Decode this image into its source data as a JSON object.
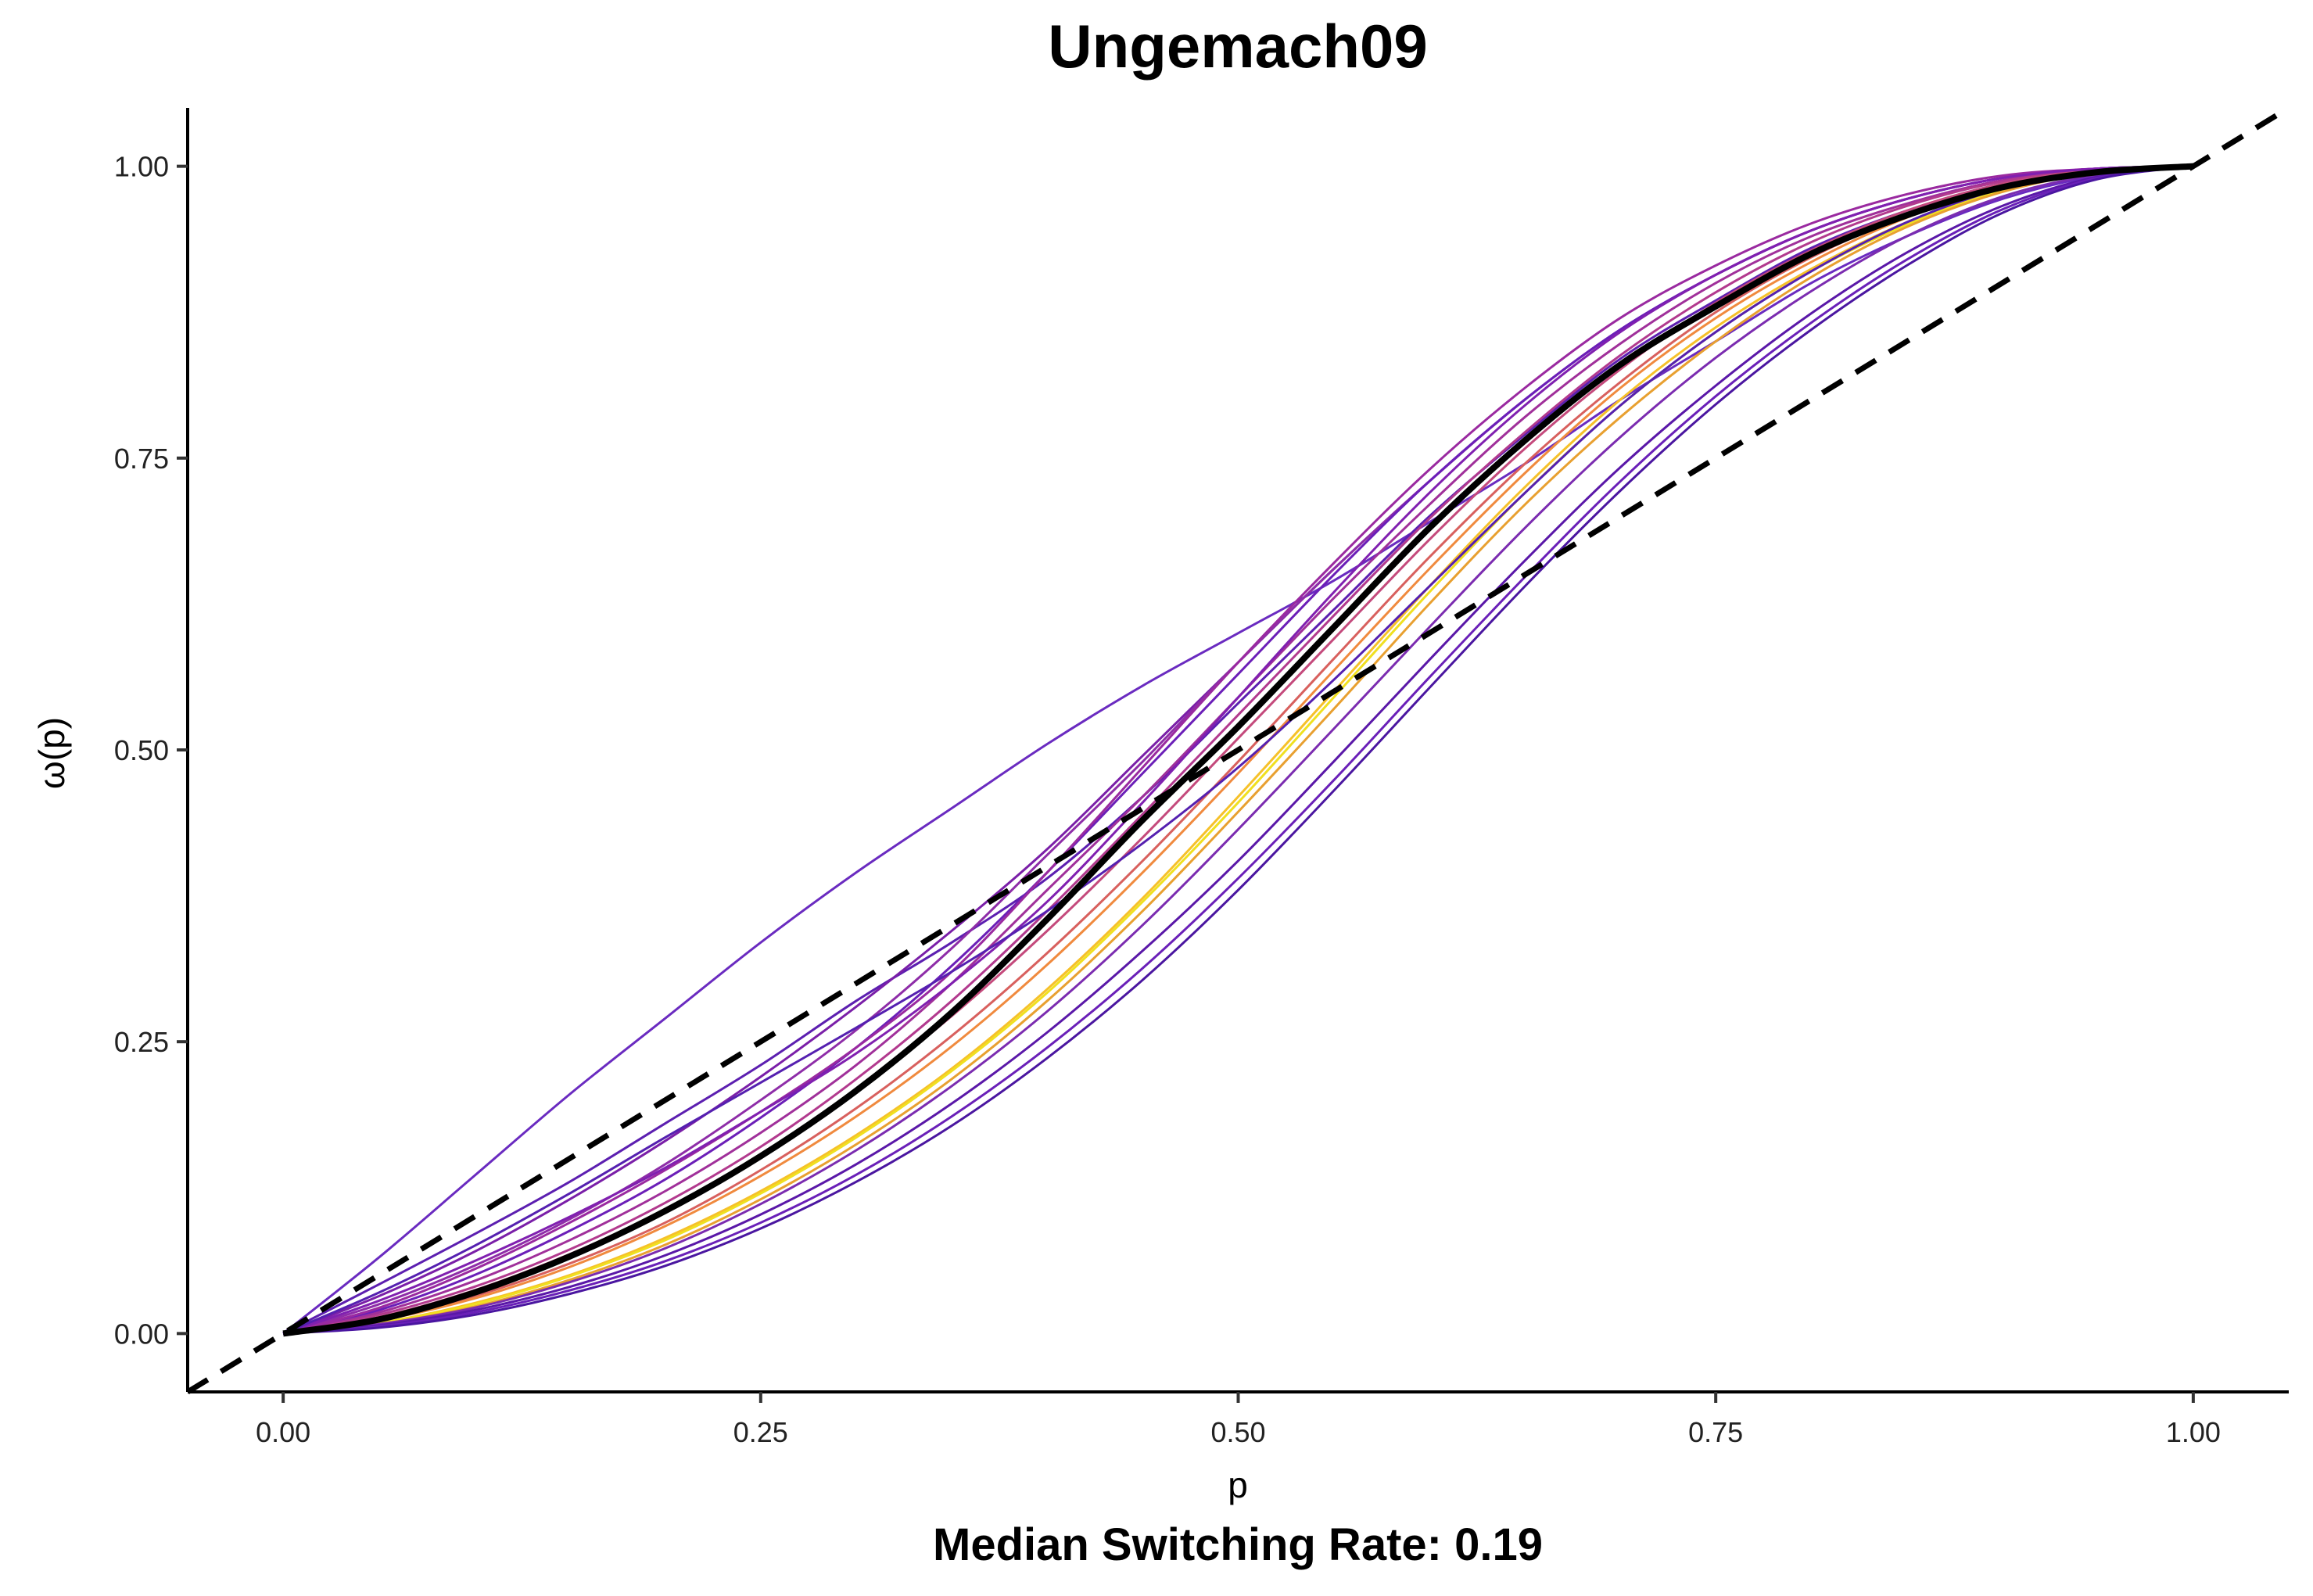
{
  "chart_data": {
    "type": "line",
    "title": "Ungemach09",
    "caption": "Median Switching Rate: 0.19",
    "xlabel": "p",
    "ylabel": "ω(p)",
    "xlim": [
      -0.05,
      1.05
    ],
    "ylim": [
      -0.05,
      1.05
    ],
    "x_ticks": [
      "0.00",
      "0.25",
      "0.50",
      "0.75",
      "1.00"
    ],
    "y_ticks": [
      "0.00",
      "0.25",
      "0.50",
      "0.75",
      "1.00"
    ],
    "grid": false,
    "legend": "none",
    "reference_line": {
      "label": "",
      "style": "dashed",
      "color": "#000000",
      "points": [
        [
          -0.05,
          -0.05
        ],
        [
          1.05,
          1.05
        ]
      ]
    },
    "x": [
      0.0,
      0.05,
      0.1,
      0.15,
      0.2,
      0.25,
      0.3,
      0.35,
      0.4,
      0.45,
      0.5,
      0.55,
      0.6,
      0.65,
      0.7,
      0.75,
      0.8,
      0.85,
      0.9,
      0.95,
      1.0
    ],
    "median_curve": {
      "color": "#000000",
      "values": [
        0.0,
        0.012,
        0.035,
        0.066,
        0.105,
        0.152,
        0.208,
        0.275,
        0.355,
        0.44,
        0.52,
        0.605,
        0.69,
        0.765,
        0.83,
        0.88,
        0.925,
        0.958,
        0.982,
        0.995,
        1.0
      ]
    },
    "series": [
      {
        "color": "#6a2bc0",
        "values": [
          0.0,
          0.065,
          0.135,
          0.205,
          0.27,
          0.335,
          0.395,
          0.45,
          0.505,
          0.555,
          0.6,
          0.645,
          0.695,
          0.745,
          0.8,
          0.85,
          0.9,
          0.94,
          0.972,
          0.992,
          1.0
        ]
      },
      {
        "color": "#5c1fb0",
        "values": [
          0.0,
          0.042,
          0.085,
          0.13,
          0.18,
          0.23,
          0.285,
          0.335,
          0.39,
          0.46,
          0.54,
          0.62,
          0.7,
          0.77,
          0.835,
          0.885,
          0.93,
          0.962,
          0.985,
          0.997,
          1.0
        ]
      },
      {
        "color": "#7a1fa8",
        "values": [
          0.0,
          0.032,
          0.07,
          0.115,
          0.165,
          0.22,
          0.28,
          0.345,
          0.415,
          0.495,
          0.575,
          0.655,
          0.73,
          0.8,
          0.86,
          0.907,
          0.945,
          0.972,
          0.99,
          0.998,
          1.0
        ]
      },
      {
        "color": "#8e2da8",
        "values": [
          0.0,
          0.025,
          0.058,
          0.098,
          0.145,
          0.2,
          0.26,
          0.33,
          0.41,
          0.49,
          0.575,
          0.655,
          0.73,
          0.8,
          0.86,
          0.907,
          0.945,
          0.972,
          0.99,
          0.998,
          1.0
        ]
      },
      {
        "color": "#6b1fb8",
        "values": [
          0.0,
          0.02,
          0.05,
          0.088,
          0.132,
          0.185,
          0.245,
          0.315,
          0.395,
          0.48,
          0.565,
          0.65,
          0.73,
          0.8,
          0.86,
          0.907,
          0.945,
          0.972,
          0.99,
          0.998,
          1.0
        ]
      },
      {
        "color": "#a0309a",
        "values": [
          0.0,
          0.018,
          0.045,
          0.08,
          0.122,
          0.172,
          0.23,
          0.3,
          0.38,
          0.46,
          0.545,
          0.63,
          0.71,
          0.785,
          0.848,
          0.9,
          0.94,
          0.968,
          0.988,
          0.997,
          1.0
        ]
      },
      {
        "color": "#b23a8e",
        "values": [
          0.0,
          0.016,
          0.04,
          0.072,
          0.112,
          0.16,
          0.218,
          0.285,
          0.362,
          0.445,
          0.53,
          0.615,
          0.698,
          0.772,
          0.838,
          0.892,
          0.935,
          0.966,
          0.987,
          0.997,
          1.0
        ]
      },
      {
        "color": "#c44a7c",
        "values": [
          0.0,
          0.014,
          0.037,
          0.068,
          0.106,
          0.153,
          0.208,
          0.272,
          0.345,
          0.425,
          0.51,
          0.595,
          0.68,
          0.758,
          0.826,
          0.883,
          0.928,
          0.962,
          0.985,
          0.997,
          1.0
        ]
      },
      {
        "color": "#d8605e",
        "values": [
          0.0,
          0.012,
          0.032,
          0.06,
          0.095,
          0.14,
          0.193,
          0.255,
          0.326,
          0.405,
          0.49,
          0.578,
          0.665,
          0.745,
          0.815,
          0.875,
          0.922,
          0.958,
          0.983,
          0.996,
          1.0
        ]
      },
      {
        "color": "#f08a3e",
        "values": [
          0.0,
          0.011,
          0.03,
          0.057,
          0.092,
          0.135,
          0.186,
          0.246,
          0.316,
          0.395,
          0.48,
          0.568,
          0.655,
          0.737,
          0.81,
          0.87,
          0.918,
          0.956,
          0.982,
          0.996,
          1.0
        ]
      },
      {
        "color": "#f6c12a",
        "values": [
          0.0,
          0.009,
          0.026,
          0.05,
          0.082,
          0.122,
          0.17,
          0.227,
          0.295,
          0.373,
          0.46,
          0.55,
          0.64,
          0.725,
          0.8,
          0.862,
          0.912,
          0.952,
          0.98,
          0.995,
          1.0
        ]
      },
      {
        "color": "#f0e020",
        "values": [
          0.0,
          0.009,
          0.025,
          0.049,
          0.08,
          0.12,
          0.168,
          0.225,
          0.292,
          0.37,
          0.455,
          0.545,
          0.635,
          0.72,
          0.795,
          0.858,
          0.91,
          0.95,
          0.979,
          0.995,
          1.0
        ]
      },
      {
        "color": "#e8a030",
        "values": [
          0.0,
          0.008,
          0.023,
          0.046,
          0.076,
          0.115,
          0.162,
          0.218,
          0.285,
          0.362,
          0.447,
          0.535,
          0.625,
          0.71,
          0.785,
          0.85,
          0.905,
          0.948,
          0.978,
          0.995,
          1.0
        ]
      },
      {
        "color": "#7b2cb0",
        "values": [
          0.0,
          0.008,
          0.022,
          0.044,
          0.073,
          0.111,
          0.157,
          0.212,
          0.276,
          0.35,
          0.432,
          0.518,
          0.605,
          0.69,
          0.768,
          0.836,
          0.893,
          0.94,
          0.974,
          0.993,
          1.0
        ]
      },
      {
        "color": "#5a18a8",
        "values": [
          0.0,
          0.007,
          0.02,
          0.04,
          0.067,
          0.102,
          0.145,
          0.197,
          0.258,
          0.328,
          0.405,
          0.49,
          0.577,
          0.662,
          0.742,
          0.812,
          0.874,
          0.926,
          0.966,
          0.991,
          1.0
        ]
      },
      {
        "color": "#6a20b8",
        "values": [
          0.0,
          0.006,
          0.018,
          0.037,
          0.062,
          0.095,
          0.136,
          0.186,
          0.245,
          0.313,
          0.39,
          0.474,
          0.562,
          0.648,
          0.73,
          0.803,
          0.866,
          0.92,
          0.963,
          0.99,
          1.0
        ]
      },
      {
        "color": "#4a16a0",
        "values": [
          0.0,
          0.005,
          0.016,
          0.034,
          0.058,
          0.09,
          0.13,
          0.178,
          0.236,
          0.303,
          0.38,
          0.465,
          0.553,
          0.64,
          0.722,
          0.796,
          0.86,
          0.915,
          0.96,
          0.989,
          1.0
        ]
      },
      {
        "color": "#9a2aa0",
        "values": [
          0.0,
          0.022,
          0.055,
          0.095,
          0.14,
          0.19,
          0.245,
          0.31,
          0.395,
          0.485,
          0.575,
          0.66,
          0.74,
          0.81,
          0.87,
          0.915,
          0.951,
          0.976,
          0.992,
          0.998,
          1.0
        ]
      },
      {
        "color": "#8020b0",
        "values": [
          0.0,
          0.028,
          0.062,
          0.1,
          0.142,
          0.19,
          0.24,
          0.3,
          0.37,
          0.455,
          0.545,
          0.635,
          0.72,
          0.795,
          0.858,
          0.907,
          0.945,
          0.972,
          0.99,
          0.998,
          1.0
        ]
      },
      {
        "color": "#5520b0",
        "values": [
          0.0,
          0.035,
          0.075,
          0.12,
          0.168,
          0.215,
          0.262,
          0.31,
          0.362,
          0.42,
          0.485,
          0.56,
          0.64,
          0.72,
          0.795,
          0.858,
          0.91,
          0.952,
          0.981,
          0.996,
          1.0
        ]
      }
    ]
  }
}
